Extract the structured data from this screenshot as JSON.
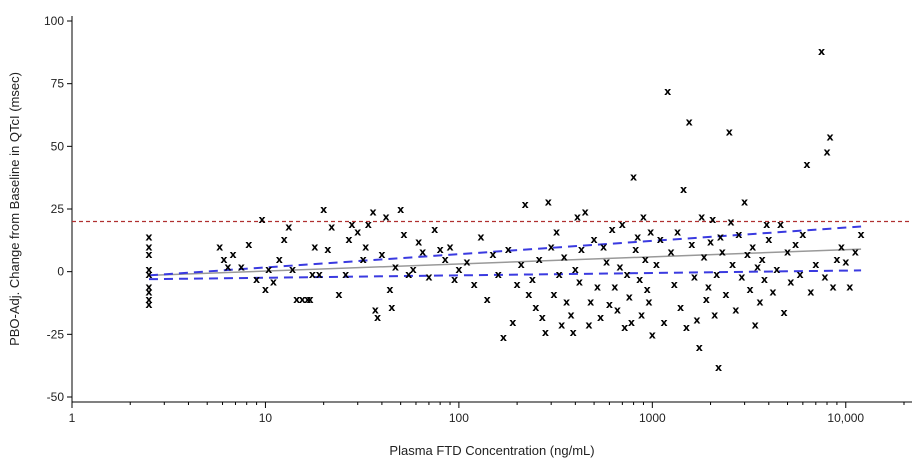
{
  "chart_data": {
    "type": "scatter",
    "title": "",
    "xlabel": "Plasma FTD Concentration (ng/mL)",
    "ylabel": "PBO-Adj. Change from Baseline in QTcI (msec)",
    "xscale": "log",
    "xlim": [
      1,
      22000
    ],
    "ylim": [
      -52,
      102
    ],
    "x_ticks": [
      1,
      10,
      100,
      1000,
      10000
    ],
    "x_tick_labels": [
      "1",
      "10",
      "100",
      "1000",
      "10,000"
    ],
    "y_ticks": [
      -50,
      -25,
      0,
      25,
      50,
      75,
      100
    ],
    "y_tick_labels": [
      "-50",
      "-25",
      "0",
      "25",
      "50",
      "75",
      "100"
    ],
    "marker": "x",
    "reference_line": {
      "y": 20,
      "style": "dashed",
      "color": "#b03030"
    },
    "regression_line": {
      "x": [
        2.5,
        12000
      ],
      "y": [
        -1.5,
        9
      ],
      "color": "#999999"
    },
    "ci_upper": {
      "x": [
        2.5,
        12000
      ],
      "y": [
        -1.5,
        18
      ],
      "style": "dashed",
      "color": "#3a3ae0"
    },
    "ci_lower": {
      "x": [
        2.5,
        12000
      ],
      "y": [
        -3,
        0.5
      ],
      "style": "dashed",
      "color": "#3a3ae0"
    },
    "points": [
      [
        2.5,
        14
      ],
      [
        2.5,
        10
      ],
      [
        2.5,
        7
      ],
      [
        2.5,
        1
      ],
      [
        2.5,
        -1
      ],
      [
        2.5,
        -6
      ],
      [
        2.5,
        -8
      ],
      [
        2.5,
        -11
      ],
      [
        2.5,
        -13
      ],
      [
        5.8,
        10
      ],
      [
        6.1,
        5
      ],
      [
        6.4,
        2
      ],
      [
        6.8,
        7
      ],
      [
        7.5,
        2
      ],
      [
        8.2,
        11
      ],
      [
        9,
        -3
      ],
      [
        9.6,
        21
      ],
      [
        10,
        -7
      ],
      [
        10.4,
        1
      ],
      [
        11,
        -4
      ],
      [
        11.8,
        5
      ],
      [
        12.5,
        13
      ],
      [
        13.2,
        18
      ],
      [
        13.8,
        1
      ],
      [
        14.5,
        -11
      ],
      [
        15.5,
        -11
      ],
      [
        16.5,
        -11
      ],
      [
        17,
        -11
      ],
      [
        17.5,
        -1
      ],
      [
        18,
        10
      ],
      [
        19,
        -1
      ],
      [
        20,
        25
      ],
      [
        21,
        9
      ],
      [
        22,
        18
      ],
      [
        24,
        -9
      ],
      [
        26,
        -1
      ],
      [
        27,
        13
      ],
      [
        28,
        19
      ],
      [
        30,
        16
      ],
      [
        32,
        5
      ],
      [
        33,
        10
      ],
      [
        34,
        19
      ],
      [
        36,
        24
      ],
      [
        37,
        -15
      ],
      [
        38,
        -18
      ],
      [
        40,
        7
      ],
      [
        42,
        22
      ],
      [
        44,
        -7
      ],
      [
        45,
        -14
      ],
      [
        47,
        2
      ],
      [
        50,
        25
      ],
      [
        52,
        15
      ],
      [
        55,
        -1
      ],
      [
        58,
        1
      ],
      [
        62,
        12
      ],
      [
        65,
        8
      ],
      [
        70,
        -2
      ],
      [
        75,
        17
      ],
      [
        80,
        9
      ],
      [
        85,
        5
      ],
      [
        90,
        10
      ],
      [
        95,
        -3
      ],
      [
        100,
        1
      ],
      [
        110,
        4
      ],
      [
        120,
        -5
      ],
      [
        130,
        14
      ],
      [
        140,
        -11
      ],
      [
        150,
        7
      ],
      [
        160,
        -1
      ],
      [
        170,
        -26
      ],
      [
        180,
        9
      ],
      [
        190,
        -20
      ],
      [
        200,
        -5
      ],
      [
        210,
        3
      ],
      [
        220,
        27
      ],
      [
        230,
        -9
      ],
      [
        240,
        -3
      ],
      [
        250,
        -14
      ],
      [
        260,
        5
      ],
      [
        270,
        -18
      ],
      [
        280,
        -24
      ],
      [
        290,
        28
      ],
      [
        300,
        10
      ],
      [
        310,
        -9
      ],
      [
        320,
        16
      ],
      [
        330,
        -1
      ],
      [
        340,
        -21
      ],
      [
        350,
        6
      ],
      [
        360,
        -12
      ],
      [
        380,
        -17
      ],
      [
        390,
        -24
      ],
      [
        400,
        1
      ],
      [
        410,
        22
      ],
      [
        420,
        -4
      ],
      [
        430,
        9
      ],
      [
        450,
        24
      ],
      [
        470,
        -21
      ],
      [
        480,
        -12
      ],
      [
        500,
        13
      ],
      [
        520,
        -6
      ],
      [
        540,
        -18
      ],
      [
        560,
        10
      ],
      [
        580,
        4
      ],
      [
        600,
        -13
      ],
      [
        620,
        17
      ],
      [
        640,
        -6
      ],
      [
        660,
        -15
      ],
      [
        680,
        2
      ],
      [
        700,
        19
      ],
      [
        720,
        -22
      ],
      [
        740,
        -1
      ],
      [
        760,
        -10
      ],
      [
        780,
        -20
      ],
      [
        800,
        38
      ],
      [
        820,
        9
      ],
      [
        840,
        14
      ],
      [
        860,
        -3
      ],
      [
        880,
        -17
      ],
      [
        900,
        22
      ],
      [
        920,
        5
      ],
      [
        940,
        -7
      ],
      [
        960,
        -12
      ],
      [
        980,
        16
      ],
      [
        1000,
        -25
      ],
      [
        1050,
        3
      ],
      [
        1100,
        13
      ],
      [
        1150,
        -20
      ],
      [
        1200,
        72
      ],
      [
        1250,
        8
      ],
      [
        1300,
        -5
      ],
      [
        1350,
        16
      ],
      [
        1400,
        -14
      ],
      [
        1450,
        33
      ],
      [
        1500,
        -22
      ],
      [
        1550,
        60
      ],
      [
        1600,
        11
      ],
      [
        1650,
        -2
      ],
      [
        1700,
        -19
      ],
      [
        1750,
        -30
      ],
      [
        1800,
        22
      ],
      [
        1850,
        6
      ],
      [
        1900,
        -11
      ],
      [
        1950,
        -6
      ],
      [
        2000,
        12
      ],
      [
        2050,
        21
      ],
      [
        2100,
        -17
      ],
      [
        2150,
        -1
      ],
      [
        2200,
        -38
      ],
      [
        2250,
        14
      ],
      [
        2300,
        8
      ],
      [
        2400,
        -9
      ],
      [
        2500,
        56
      ],
      [
        2550,
        20
      ],
      [
        2600,
        3
      ],
      [
        2700,
        -15
      ],
      [
        2800,
        15
      ],
      [
        2900,
        -2
      ],
      [
        3000,
        28
      ],
      [
        3100,
        7
      ],
      [
        3200,
        -7
      ],
      [
        3300,
        10
      ],
      [
        3400,
        -21
      ],
      [
        3500,
        2
      ],
      [
        3600,
        -12
      ],
      [
        3700,
        5
      ],
      [
        3800,
        -3
      ],
      [
        3900,
        19
      ],
      [
        4000,
        13
      ],
      [
        4200,
        -8
      ],
      [
        4400,
        1
      ],
      [
        4600,
        19
      ],
      [
        4800,
        -16
      ],
      [
        5000,
        8
      ],
      [
        5200,
        -4
      ],
      [
        5500,
        11
      ],
      [
        5800,
        -1
      ],
      [
        6000,
        15
      ],
      [
        6300,
        43
      ],
      [
        6600,
        -8
      ],
      [
        7000,
        3
      ],
      [
        7500,
        88
      ],
      [
        7800,
        -2
      ],
      [
        8000,
        48
      ],
      [
        8300,
        54
      ],
      [
        8600,
        -6
      ],
      [
        9000,
        5
      ],
      [
        9500,
        10
      ],
      [
        10000,
        4
      ],
      [
        10500,
        -6
      ],
      [
        11200,
        8
      ],
      [
        12000,
        15
      ]
    ]
  }
}
